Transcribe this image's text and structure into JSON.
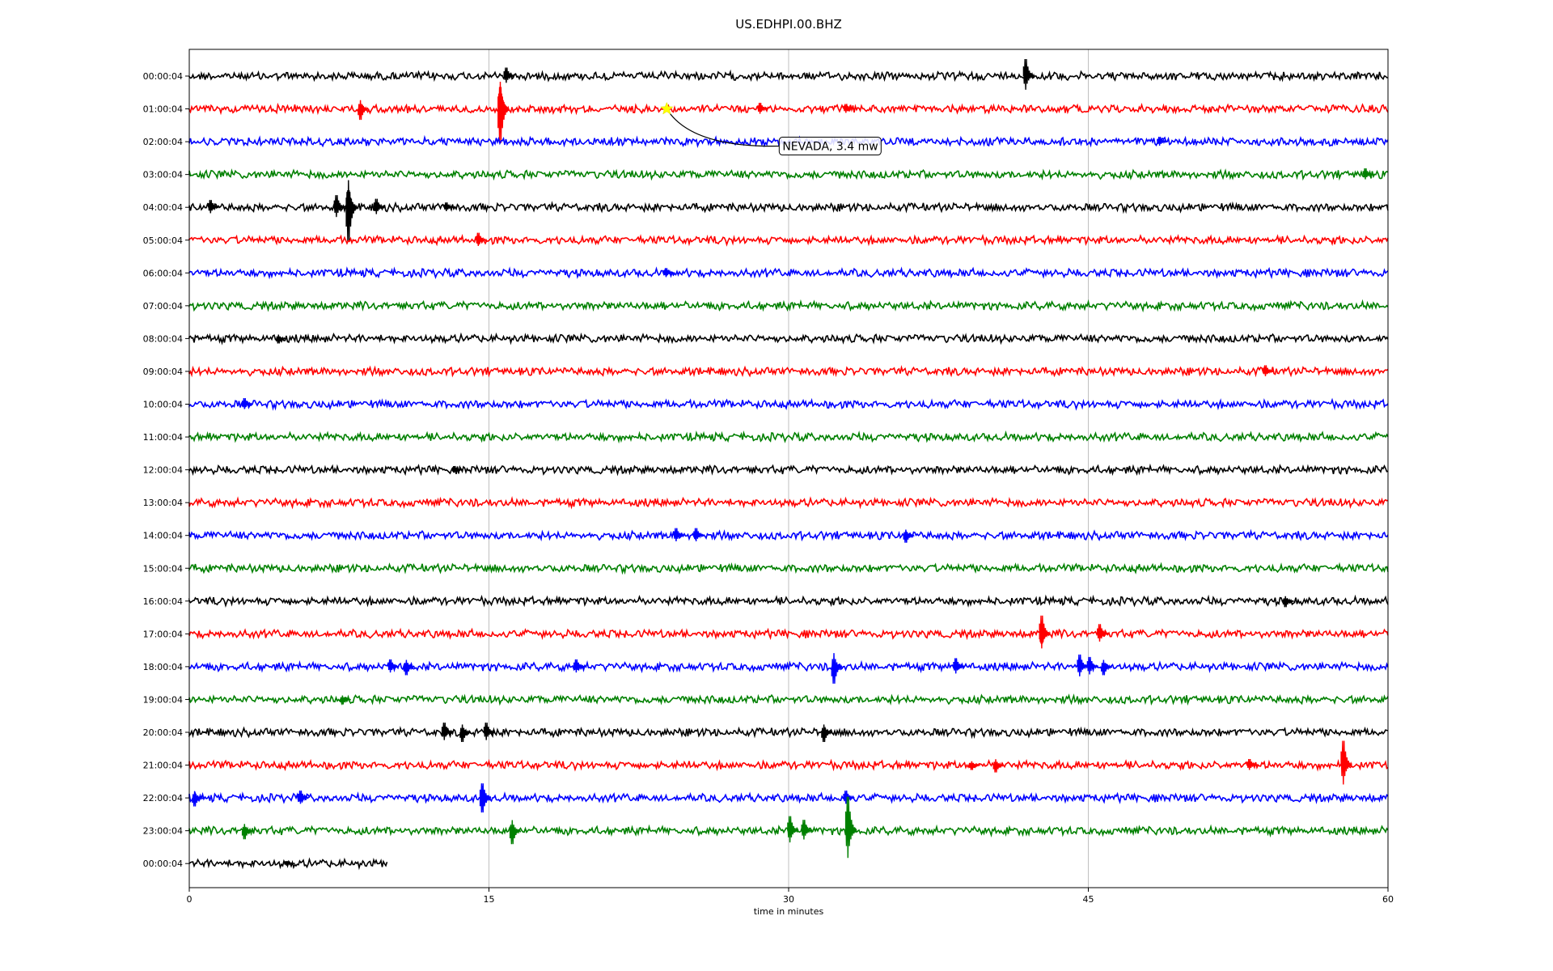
{
  "chart_data": {
    "type": "line",
    "title": "US.EDHPI.00.BHZ",
    "xlabel": "time in minutes",
    "ylabel": "",
    "xlim": [
      0,
      60
    ],
    "xticks": [
      "0",
      "15",
      "30",
      "45",
      "60"
    ],
    "xtick_values": [
      0,
      15,
      30,
      45,
      60
    ],
    "grid": "vertical at x ticks",
    "legend": "none",
    "trace_colors": [
      "#000000",
      "#ff0000",
      "#0000ff",
      "#008000"
    ],
    "rows": [
      {
        "label": "00:00:04",
        "end_minutes": 60,
        "events": [
          [
            16,
            0.35
          ],
          [
            42,
            0.7
          ]
        ]
      },
      {
        "label": "01:00:04",
        "end_minutes": 60,
        "events": [
          [
            8.7,
            -0.45
          ],
          [
            15.7,
            0.9
          ],
          [
            15.7,
            -1.4
          ],
          [
            28.7,
            0.25
          ],
          [
            33,
            0.2
          ]
        ]
      },
      {
        "label": "02:00:04",
        "end_minutes": 60,
        "events": [
          [
            48.7,
            0.2
          ]
        ]
      },
      {
        "label": "03:00:04",
        "end_minutes": 60,
        "events": [
          [
            59,
            0.25
          ]
        ]
      },
      {
        "label": "04:00:04",
        "end_minutes": 60,
        "events": [
          [
            1.2,
            0.3
          ],
          [
            7.5,
            0.5
          ],
          [
            8.1,
            0.7
          ],
          [
            8.1,
            -1.4
          ],
          [
            9.5,
            0.35
          ],
          [
            13,
            0.2
          ]
        ]
      },
      {
        "label": "05:00:04",
        "end_minutes": 60,
        "events": [
          [
            14.6,
            0.3
          ]
        ]
      },
      {
        "label": "06:00:04",
        "end_minutes": 60,
        "events": [
          [
            24,
            0.2
          ]
        ]
      },
      {
        "label": "07:00:04",
        "end_minutes": 60,
        "events": []
      },
      {
        "label": "08:00:04",
        "end_minutes": 60,
        "events": [
          [
            4.6,
            -0.2
          ]
        ]
      },
      {
        "label": "09:00:04",
        "end_minutes": 60,
        "events": [
          [
            54,
            0.25
          ]
        ]
      },
      {
        "label": "10:00:04",
        "end_minutes": 60,
        "events": [
          [
            2.9,
            0.25
          ]
        ]
      },
      {
        "label": "11:00:04",
        "end_minutes": 60,
        "events": []
      },
      {
        "label": "12:00:04",
        "end_minutes": 60,
        "events": [
          [
            13.4,
            0.15
          ]
        ]
      },
      {
        "label": "13:00:04",
        "end_minutes": 60,
        "events": []
      },
      {
        "label": "14:00:04",
        "end_minutes": 60,
        "events": [
          [
            24.5,
            0.3
          ],
          [
            25.5,
            0.3
          ],
          [
            36,
            -0.3
          ]
        ]
      },
      {
        "label": "15:00:04",
        "end_minutes": 60,
        "events": []
      },
      {
        "label": "16:00:04",
        "end_minutes": 60,
        "events": [
          [
            55,
            -0.25
          ]
        ]
      },
      {
        "label": "17:00:04",
        "end_minutes": 60,
        "events": [
          [
            42.8,
            0.75
          ],
          [
            42.8,
            -0.4
          ],
          [
            45.7,
            0.4
          ]
        ]
      },
      {
        "label": "18:00:04",
        "end_minutes": 60,
        "events": [
          [
            10.2,
            0.3
          ],
          [
            11,
            -0.35
          ],
          [
            19.5,
            0.3
          ],
          [
            32.4,
            -0.7
          ],
          [
            38.5,
            0.35
          ],
          [
            44.7,
            0.5
          ],
          [
            45.2,
            0.4
          ],
          [
            45.9,
            -0.35
          ]
        ]
      },
      {
        "label": "19:00:04",
        "end_minutes": 60,
        "events": [
          [
            7.8,
            -0.2
          ]
        ]
      },
      {
        "label": "20:00:04",
        "end_minutes": 60,
        "events": [
          [
            12.9,
            0.4
          ],
          [
            13.8,
            -0.4
          ],
          [
            15,
            0.4
          ],
          [
            31.9,
            -0.4
          ]
        ]
      },
      {
        "label": "21:00:04",
        "end_minutes": 60,
        "events": [
          [
            39.3,
            -0.2
          ],
          [
            40.5,
            -0.3
          ],
          [
            53.2,
            0.25
          ],
          [
            57.9,
            1.0
          ]
        ]
      },
      {
        "label": "22:00:04",
        "end_minutes": 60,
        "events": [
          [
            0.4,
            -0.35
          ],
          [
            5.7,
            0.3
          ],
          [
            14.8,
            0.6
          ],
          [
            14.8,
            -0.6
          ],
          [
            33,
            0.3
          ]
        ]
      },
      {
        "label": "23:00:04",
        "end_minutes": 60,
        "events": [
          [
            2.9,
            -0.35
          ],
          [
            16.3,
            -0.55
          ],
          [
            30.2,
            0.6
          ],
          [
            30.9,
            0.45
          ],
          [
            33.1,
            1.4
          ],
          [
            33.1,
            -0.3
          ]
        ]
      },
      {
        "label": "00:00:04",
        "end_minutes": 9.9,
        "events": [
          [
            5,
            0.1
          ]
        ]
      }
    ],
    "annotations": [
      {
        "text": "NEVADA, 3.4 mw",
        "row": 1,
        "x": 23.9,
        "marker": "star",
        "marker_color": "#ffff00"
      }
    ]
  }
}
